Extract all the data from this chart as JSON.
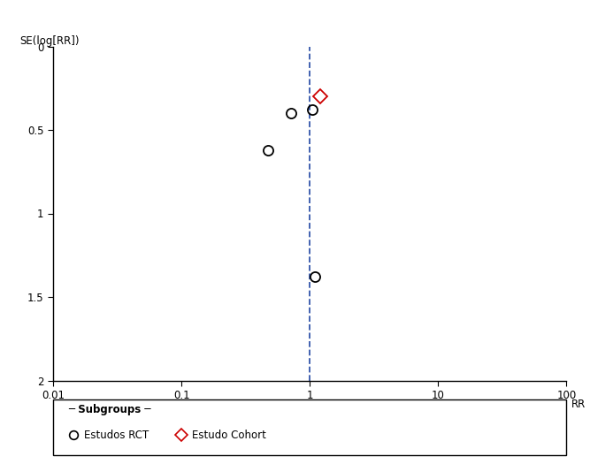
{
  "rct_points": [
    {
      "rr": 0.47,
      "se": 0.62
    },
    {
      "rr": 0.72,
      "se": 0.4
    },
    {
      "rr": 1.05,
      "se": 0.38
    },
    {
      "rr": 1.1,
      "se": 1.38
    }
  ],
  "cohort_points": [
    {
      "rr": 1.2,
      "se": 0.3
    }
  ],
  "vline_x": 1.0,
  "ylim_bottom": 2.0,
  "ylim_top": 0.0,
  "yticks": [
    0,
    0.5,
    1.0,
    1.5,
    2.0
  ],
  "xticks_log": [
    0.01,
    0.1,
    1,
    10,
    100
  ],
  "xtick_labels": [
    "0.01",
    "0.1",
    "1",
    "10",
    "100"
  ],
  "ylabel": "SE(log[RR])",
  "xlabel": "RR",
  "legend_title": "Subgroups",
  "legend_rct": "Estudos RCT",
  "legend_cohort": "Estudo Cohort",
  "rct_color": "#000000",
  "cohort_color": "#cc0000",
  "vline_color": "#3355aa",
  "background_color": "#ffffff",
  "marker_size": 8,
  "marker_linewidth": 1.3
}
